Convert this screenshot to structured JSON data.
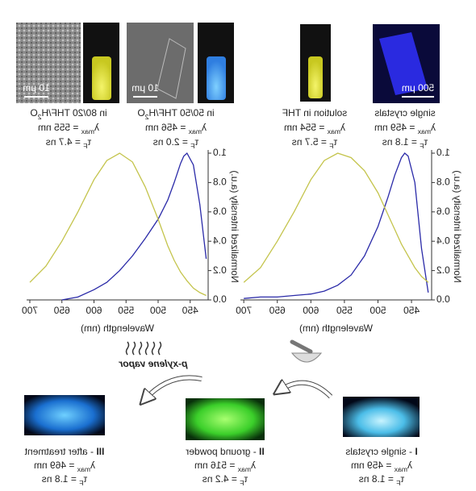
{
  "top_panels": [
    {
      "lines": [
        [
          {
            "t": "single crystals"
          }
        ],
        [
          {
            "t": "λ"
          },
          {
            "t": "max",
            "sub": true
          },
          {
            "t": " = 459 nm"
          }
        ],
        [
          {
            "t": "τ"
          },
          {
            "t": "F",
            "sub": true
          },
          {
            "t": " = 1.8 ns"
          }
        ]
      ],
      "scale_bar": "500 μm"
    },
    {
      "lines": [
        [
          {
            "t": "solution in THF"
          }
        ],
        [
          {
            "t": "λ"
          },
          {
            "t": "max",
            "sub": true
          },
          {
            "t": " = 554 nm"
          }
        ],
        [
          {
            "t": "τ"
          },
          {
            "t": "F",
            "sub": true
          },
          {
            "t": " = 5.7 ns"
          }
        ]
      ]
    },
    {
      "lines": [
        [
          {
            "t": "in 50/50 THF/H"
          },
          {
            "t": "2",
            "sub": true
          },
          {
            "t": "O"
          }
        ],
        [
          {
            "t": "λ"
          },
          {
            "t": "max",
            "sub": true
          },
          {
            "t": " = 456 nm"
          }
        ],
        [
          {
            "t": "τ"
          },
          {
            "t": "F",
            "sub": true
          },
          {
            "t": " = 2.0 ns"
          }
        ]
      ],
      "scale_bar": "10 μm"
    },
    {
      "lines": [
        [
          {
            "t": "in 80/20 THF/H"
          },
          {
            "t": "2",
            "sub": true
          },
          {
            "t": "O"
          }
        ],
        [
          {
            "t": "λ"
          },
          {
            "t": "max",
            "sub": true
          },
          {
            "t": " = 555 nm"
          }
        ],
        [
          {
            "t": "τ"
          },
          {
            "t": "F",
            "sub": true
          },
          {
            "t": " = 4.7 ns"
          }
        ]
      ],
      "scale_bar": "10 μm"
    }
  ],
  "chart_data": [
    {
      "type": "line",
      "x_label": "Wavelength (nm)",
      "y_label": "Normalized intensity (a.u.)",
      "x": [
        425,
        435,
        445,
        455,
        460,
        465,
        475,
        485,
        500,
        520,
        540,
        560,
        580,
        600,
        625,
        650,
        675,
        700
      ],
      "series": [
        {
          "color": "#2a2aa8",
          "values": [
            0.05,
            0.35,
            0.8,
            0.98,
            1.0,
            0.97,
            0.85,
            0.7,
            0.5,
            0.3,
            0.17,
            0.1,
            0.06,
            0.04,
            0.03,
            0.02,
            0.02,
            0.01
          ]
        },
        {
          "color": "#c4c44c",
          "values": [
            0.12,
            0.16,
            0.22,
            0.3,
            0.34,
            0.38,
            0.48,
            0.58,
            0.73,
            0.88,
            0.97,
            1.0,
            0.95,
            0.82,
            0.6,
            0.4,
            0.22,
            0.12
          ]
        }
      ],
      "xlim": [
        420,
        705
      ],
      "ylim": [
        0,
        1
      ],
      "xticks": [
        450,
        500,
        550,
        600,
        650,
        700
      ],
      "yticks": [
        {
          "value": 0,
          "label": "0.0"
        },
        0.2,
        0.4,
        0.6,
        0.8,
        {
          "value": 1,
          "label": "1.0"
        }
      ]
    },
    {
      "type": "line",
      "x_label": "Wavelength (nm)",
      "y_label": "Normalized intensity (a.u.)",
      "x": [
        425,
        435,
        445,
        455,
        460,
        465,
        475,
        485,
        500,
        520,
        540,
        560,
        580,
        600,
        625,
        650,
        675,
        700
      ],
      "series": [
        {
          "color": "#2a2aa8",
          "values": [
            0.28,
            0.65,
            0.92,
            1.0,
            0.98,
            0.93,
            0.8,
            0.68,
            0.55,
            0.42,
            0.3,
            0.2,
            0.12,
            0.07,
            0.02,
            0.0,
            null,
            null
          ]
        },
        {
          "color": "#c4c44c",
          "values": [
            0.03,
            0.05,
            0.08,
            0.13,
            0.16,
            0.19,
            0.27,
            0.37,
            0.55,
            0.77,
            0.94,
            1.0,
            0.95,
            0.82,
            0.6,
            0.4,
            0.23,
            0.12
          ]
        }
      ],
      "xlim": [
        422,
        705
      ],
      "ylim": [
        0,
        1
      ],
      "xticks": [
        450,
        500,
        550,
        600,
        650,
        700
      ],
      "yticks": [
        {
          "value": 0,
          "label": "0.0"
        },
        0.2,
        0.4,
        0.6,
        0.8,
        {
          "value": 1,
          "label": "1.0"
        }
      ]
    }
  ],
  "transitions": {
    "grinding_label": "p-xylene vapor"
  },
  "bottom_panels": [
    {
      "lines": [
        [
          {
            "t": "I",
            "bold": true
          },
          {
            "t": " - single crystals"
          }
        ],
        [
          {
            "t": "λ"
          },
          {
            "t": "max",
            "sub": true
          },
          {
            "t": " = 459 nm"
          }
        ],
        [
          {
            "t": "τ"
          },
          {
            "t": "F",
            "sub": true
          },
          {
            "t": " = 1.8 ns"
          }
        ]
      ]
    },
    {
      "lines": [
        [
          {
            "t": "II",
            "bold": true
          },
          {
            "t": " - ground powder"
          }
        ],
        [
          {
            "t": "λ"
          },
          {
            "t": "max",
            "sub": true
          },
          {
            "t": " = 516 nm"
          }
        ],
        [
          {
            "t": "τ"
          },
          {
            "t": "F",
            "sub": true
          },
          {
            "t": " = 4.2 ns"
          }
        ]
      ]
    },
    {
      "lines": [
        [
          {
            "t": "III",
            "bold": true
          },
          {
            "t": " - after treatment"
          }
        ],
        [
          {
            "t": "λ"
          },
          {
            "t": "max",
            "sub": true
          },
          {
            "t": " = 469 nm"
          }
        ],
        [
          {
            "t": "τ"
          },
          {
            "t": "F",
            "sub": true
          },
          {
            "t": " = 1.8 ns"
          }
        ]
      ]
    }
  ]
}
